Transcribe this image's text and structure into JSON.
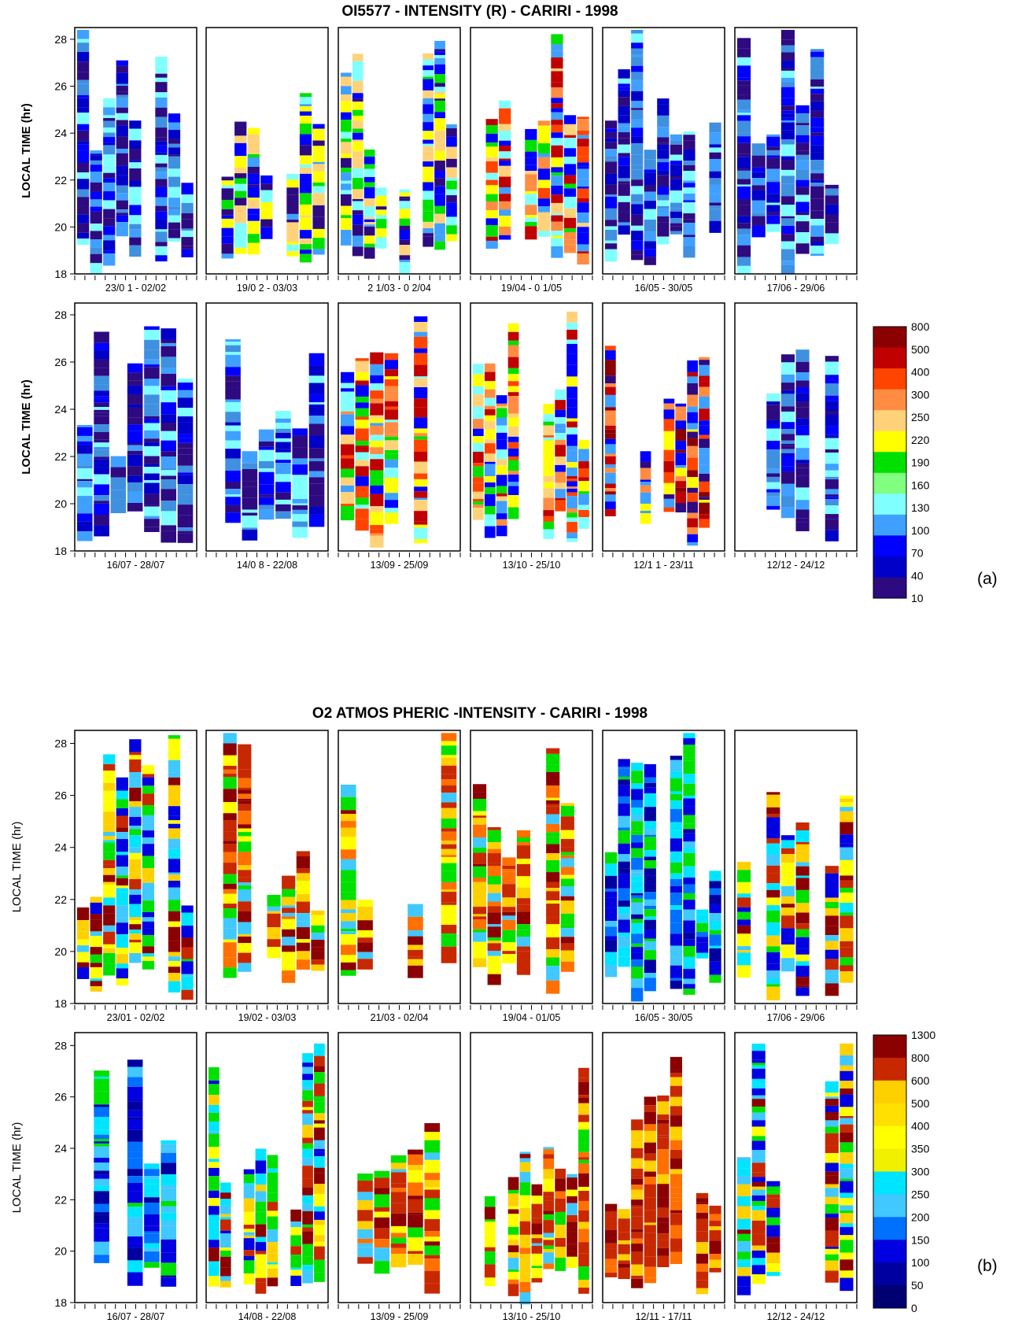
{
  "figure_a": {
    "title": "OI5577 - INTENSITY (R) - CARIRI - 1998",
    "ylabel": "LOCAL TIME (hr)",
    "panel_label": "(a)",
    "yticks": [
      "18",
      "20",
      "22",
      "24",
      "26",
      "28"
    ],
    "colorbar": {
      "labels": [
        "800",
        "500",
        "400",
        "300",
        "250",
        "220",
        "190",
        "160",
        "130",
        "100",
        "70",
        "40",
        "10"
      ],
      "colors": [
        "#8b0000",
        "#c00000",
        "#ff4400",
        "#ff8c42",
        "#ffd27a",
        "#ffff00",
        "#00e000",
        "#80ff80",
        "#80ffff",
        "#40a0ff",
        "#0000ff",
        "#0000c8",
        "#2e0a80"
      ]
    },
    "panels": [
      "23/0 1 - 02/02",
      "19/0 2 - 03/03",
      "2 1/03 - 0 2/04",
      "19/04 - 0 1/05",
      "16/05 - 30/05",
      "17/06 - 29/06",
      "16/07 - 28/07",
      "14/0 8 - 22/08",
      "13/09 - 25/09",
      "13/10 - 25/10",
      "12/1 1 - 23/11",
      "12/12 - 24/12"
    ]
  },
  "figure_b": {
    "title": "O2 ATMOS PHERIC -INTENSITY - CARIRI - 1998",
    "ylabel": "LOCAL TIME (hr)",
    "panel_label": "(b)",
    "yticks": [
      "18",
      "20",
      "22",
      "24",
      "26",
      "28"
    ],
    "colorbar": {
      "labels": [
        "1300",
        "800",
        "600",
        "500",
        "400",
        "350",
        "300",
        "250",
        "200",
        "150",
        "100",
        "50",
        "0"
      ],
      "colors": [
        "#8b0000",
        "#c82800",
        "#ffd000",
        "#ffe000",
        "#ffff00",
        "#f0f000",
        "#00e5ff",
        "#40c8ff",
        "#0070ff",
        "#0000e0",
        "#0000a0",
        "#000070"
      ]
    },
    "panels": [
      "23/01 - 02/02",
      "19/02 - 03/03",
      "21/03 - 02/04",
      "19/04 - 01/05",
      "16/05 - 30/05",
      "17/06 - 29/06",
      "16/07 - 28/07",
      "14/08 - 22/08",
      "13/09 - 25/09",
      "13/10 - 25/10",
      "12/11 - 17/11",
      "12/12 - 24/12"
    ]
  },
  "chart_data": [
    {
      "type": "heatmap",
      "title": "OI5577 - INTENSITY (R) - CARIRI - 1998",
      "ylabel": "LOCAL TIME (hr)",
      "ylim": [
        18,
        28.5
      ],
      "units": "R",
      "colorbar_levels": [
        10,
        40,
        70,
        100,
        130,
        160,
        190,
        220,
        250,
        300,
        400,
        500,
        800
      ],
      "panels": [
        "23/0 1 - 02/02",
        "19/0 2 - 03/03",
        "2 1/03 - 0 2/04",
        "19/04 - 0 1/05",
        "16/05 - 30/05",
        "17/06 - 29/06",
        "16/07 - 28/07",
        "14/0 8 - 22/08",
        "13/09 - 25/09",
        "13/10 - 25/10",
        "12/1 1 - 23/11",
        "12/12 - 24/12"
      ]
    },
    {
      "type": "heatmap",
      "title": "O2 ATMOS PHERIC -INTENSITY - CARIRI - 1998",
      "ylabel": "LOCAL TIME (hr)",
      "ylim": [
        18,
        28.5
      ],
      "colorbar_levels": [
        0,
        50,
        100,
        150,
        200,
        250,
        300,
        350,
        400,
        500,
        600,
        800,
        1300
      ],
      "panels": [
        "23/01 - 02/02",
        "19/02 - 03/03",
        "21/03 - 02/04",
        "19/04 - 01/05",
        "16/05 - 30/05",
        "17/06 - 29/06",
        "16/07 - 28/07",
        "14/08 - 22/08",
        "13/09 - 25/09",
        "13/10 - 25/10",
        "12/11 - 17/11",
        "12/12 - 24/12"
      ]
    }
  ]
}
